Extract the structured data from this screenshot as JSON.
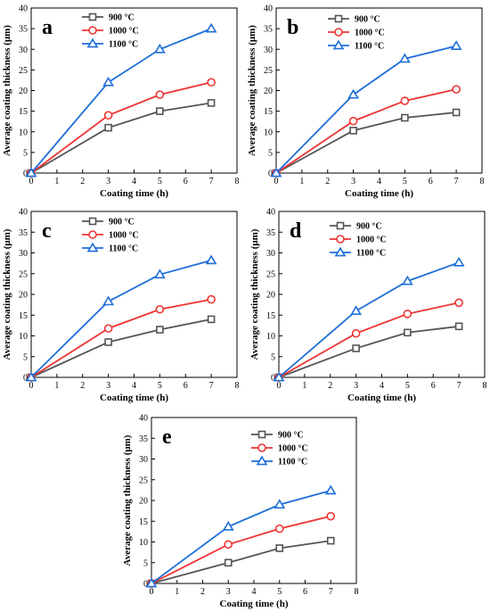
{
  "colors": {
    "s900": "#555555",
    "s1000": "#ee3333",
    "s1100": "#1e6fd9"
  },
  "chart_data": [
    {
      "type": "line",
      "panel_label": "a",
      "x": [
        0,
        3,
        5,
        7
      ],
      "xlabel": "Coating time (h)",
      "ylabel": "Average coating thickness (μm)",
      "xlim": [
        0,
        8
      ],
      "ylim": [
        0,
        40
      ],
      "xticks": [
        "0",
        "1",
        "2",
        "3",
        "4",
        "5",
        "6",
        "7",
        "8"
      ],
      "yticks": [
        "0",
        "5",
        "10",
        "15",
        "20",
        "25",
        "30",
        "35",
        "40"
      ],
      "legend_position": "top-left",
      "grid": false,
      "series": [
        {
          "name": "900 °C",
          "marker": "square",
          "values": [
            0,
            11,
            15,
            17
          ]
        },
        {
          "name": "1000 °C",
          "marker": "circle",
          "values": [
            0,
            14,
            19,
            22
          ]
        },
        {
          "name": "1100 °C",
          "marker": "triangle",
          "values": [
            0,
            22,
            30,
            35
          ]
        }
      ]
    },
    {
      "type": "line",
      "panel_label": "b",
      "x": [
        0,
        3,
        5,
        7
      ],
      "xlabel": "Coating time (h)",
      "ylabel": "Average coating thickness (μm)",
      "xlim": [
        0,
        8
      ],
      "ylim": [
        0,
        40
      ],
      "xticks": [
        "0",
        "1",
        "2",
        "3",
        "4",
        "5",
        "6",
        "7",
        "8"
      ],
      "yticks": [
        "0",
        "5",
        "10",
        "15",
        "20",
        "25",
        "30",
        "35",
        "40"
      ],
      "legend_position": "top-left",
      "grid": false,
      "series": [
        {
          "name": "900 °C",
          "marker": "square",
          "values": [
            0,
            10.3,
            13.4,
            14.7
          ]
        },
        {
          "name": "1000 °C",
          "marker": "circle",
          "values": [
            0,
            12.6,
            17.5,
            20.3
          ]
        },
        {
          "name": "1100 °C",
          "marker": "triangle",
          "values": [
            0,
            19,
            27.7,
            30.8
          ]
        }
      ]
    },
    {
      "type": "line",
      "panel_label": "c",
      "x": [
        0,
        3,
        5,
        7
      ],
      "xlabel": "Coating time (h)",
      "ylabel": "Average coating thickness (μm)",
      "xlim": [
        0,
        8
      ],
      "ylim": [
        0,
        40
      ],
      "xticks": [
        "0",
        "1",
        "2",
        "3",
        "4",
        "5",
        "6",
        "7",
        "8"
      ],
      "yticks": [
        "0",
        "5",
        "10",
        "15",
        "20",
        "25",
        "30",
        "35",
        "40"
      ],
      "legend_position": "top-left",
      "grid": false,
      "series": [
        {
          "name": "900 °C",
          "marker": "square",
          "values": [
            0,
            8.5,
            11.5,
            14
          ]
        },
        {
          "name": "1000 °C",
          "marker": "circle",
          "values": [
            0,
            11.8,
            16.4,
            18.8
          ]
        },
        {
          "name": "1100 °C",
          "marker": "triangle",
          "values": [
            0,
            18.3,
            24.8,
            28.2
          ]
        }
      ]
    },
    {
      "type": "line",
      "panel_label": "d",
      "x": [
        0,
        3,
        5,
        7
      ],
      "xlabel": "Coating time (h)",
      "ylabel": "Average coating thickness (μm)",
      "xlim": [
        0,
        8
      ],
      "ylim": [
        0,
        40
      ],
      "xticks": [
        "0",
        "1",
        "2",
        "3",
        "4",
        "5",
        "6",
        "7",
        "8"
      ],
      "yticks": [
        "0",
        "5",
        "10",
        "15",
        "20",
        "25",
        "30",
        "35",
        "40"
      ],
      "legend_position": "top-left",
      "grid": false,
      "series": [
        {
          "name": "900 °C",
          "marker": "square",
          "values": [
            0,
            7,
            10.8,
            12.3
          ]
        },
        {
          "name": "1000 °C",
          "marker": "circle",
          "values": [
            0,
            10.6,
            15.3,
            18
          ]
        },
        {
          "name": "1100 °C",
          "marker": "triangle",
          "values": [
            0,
            16,
            23.2,
            27.7
          ]
        }
      ]
    },
    {
      "type": "line",
      "panel_label": "e",
      "x": [
        0,
        3,
        5,
        7
      ],
      "xlabel": "Coating time (h)",
      "ylabel": "Average coating thickness (μm)",
      "xlim": [
        0,
        8
      ],
      "ylim": [
        0,
        40
      ],
      "xticks": [
        "0",
        "1",
        "2",
        "3",
        "4",
        "5",
        "6",
        "7",
        "8"
      ],
      "yticks": [
        "0",
        "5",
        "10",
        "15",
        "20",
        "25",
        "30",
        "35",
        "40"
      ],
      "legend_position": "top-left",
      "grid": false,
      "series": [
        {
          "name": "900 °C",
          "marker": "square",
          "values": [
            0,
            5,
            8.5,
            10.3
          ]
        },
        {
          "name": "1000 °C",
          "marker": "circle",
          "values": [
            0,
            9.4,
            13.2,
            16.2
          ]
        },
        {
          "name": "1100 °C",
          "marker": "triangle",
          "values": [
            0,
            13.7,
            19,
            22.4
          ]
        }
      ]
    }
  ]
}
